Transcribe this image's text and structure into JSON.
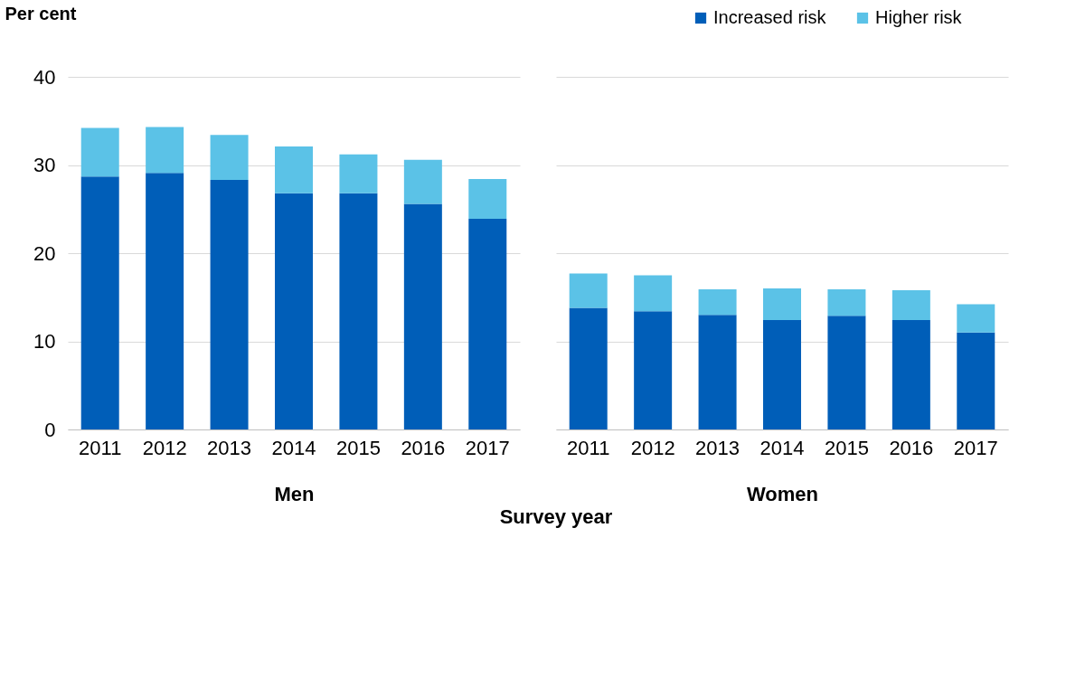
{
  "chart_data": [
    {
      "type": "bar",
      "stacked": true,
      "ylabel": "Per cent",
      "xlabel": "Men",
      "categories": [
        "2011",
        "2012",
        "2013",
        "2014",
        "2015",
        "2016",
        "2017"
      ],
      "series": [
        {
          "name": "Increased risk",
          "color": "#005eb8",
          "values": [
            28.7,
            29.1,
            28.3,
            26.8,
            26.8,
            25.6,
            23.9
          ]
        },
        {
          "name": "Higher risk",
          "color": "#5bc2e7",
          "values": [
            5.5,
            5.2,
            5.1,
            5.3,
            4.4,
            5.0,
            4.5
          ]
        }
      ],
      "ylim": [
        0,
        40
      ],
      "yticks": [
        0,
        10,
        20,
        30,
        40
      ],
      "grid": "y",
      "legend": "top right"
    },
    {
      "type": "bar",
      "stacked": true,
      "xlabel": "Women",
      "categories": [
        "2011",
        "2012",
        "2013",
        "2014",
        "2015",
        "2016",
        "2017"
      ],
      "series": [
        {
          "name": "Increased risk",
          "color": "#005eb8",
          "values": [
            13.8,
            13.4,
            13.0,
            12.4,
            12.9,
            12.4,
            11.0
          ]
        },
        {
          "name": "Higher risk",
          "color": "#5bc2e7",
          "values": [
            3.9,
            4.1,
            2.9,
            3.6,
            3.0,
            3.4,
            3.2
          ]
        }
      ],
      "ylim": [
        0,
        40
      ],
      "yticks": [
        0,
        10,
        20,
        30,
        40
      ],
      "grid": "y",
      "tick_labels": "x",
      "annotations": [
        "Survey year"
      ]
    }
  ]
}
